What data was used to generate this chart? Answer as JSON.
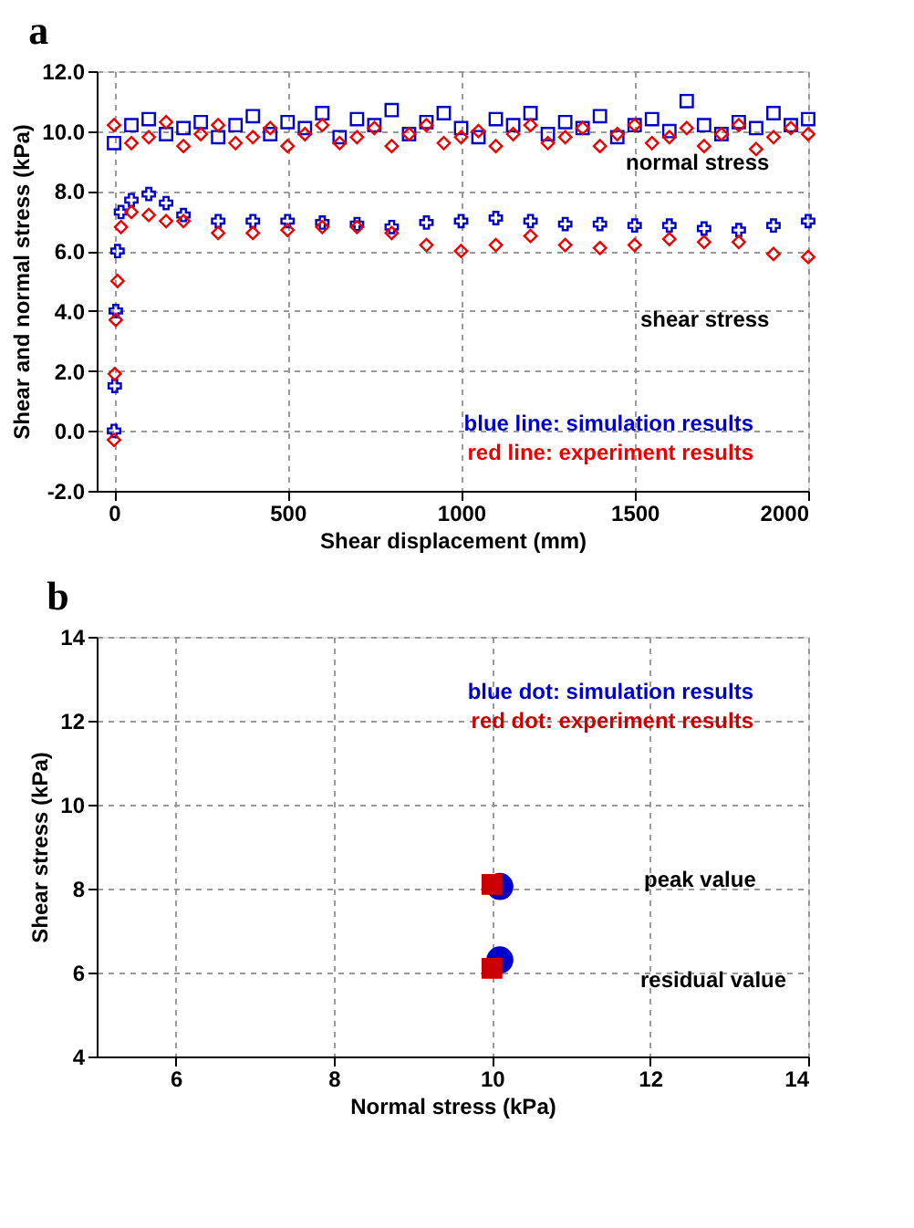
{
  "chart_data": [
    {
      "type": "scatter",
      "title": "a",
      "xlabel": "Shear displacement (mm)",
      "ylabel": "Shear and normal stress (kPa)",
      "xlim": [
        -50,
        2000
      ],
      "xticks": [
        0,
        500,
        {
          "value": 1000,
          "label": "1000"
        },
        {
          "value": 1500,
          "label": "1500"
        },
        {
          "value": 2000,
          "label": "2000"
        }
      ],
      "ylim": [
        -2,
        12
      ],
      "yticks": [
        {
          "value": -2,
          "label": "-2.0"
        },
        {
          "value": 0,
          "label": "0.0"
        },
        {
          "value": 2,
          "label": "2.0"
        },
        {
          "value": 4,
          "label": "4.0"
        },
        {
          "value": 6,
          "label": "6.0"
        },
        {
          "value": 8,
          "label": "8.0"
        },
        {
          "value": 10,
          "label": "10.0"
        },
        {
          "value": 12,
          "label": "12.0"
        }
      ],
      "grid": true,
      "series": [
        {
          "color": "#0000cc",
          "marker": "square",
          "x": [
            0,
            50,
            100,
            150,
            200,
            250,
            300,
            350,
            400,
            450,
            500,
            550,
            600,
            650,
            700,
            750,
            800,
            850,
            900,
            950,
            1000,
            1050,
            1100,
            1150,
            1200,
            1250,
            1300,
            1350,
            1400,
            1450,
            1500,
            1550,
            1600,
            1650,
            1700,
            1750,
            1800,
            1850,
            1900,
            1950,
            2000
          ],
          "values": [
            9.6,
            10.2,
            10.4,
            9.9,
            10.1,
            10.3,
            9.8,
            10.2,
            10.5,
            9.9,
            10.3,
            10.1,
            10.6,
            9.8,
            10.4,
            10.2,
            10.7,
            9.9,
            10.3,
            10.6,
            10.1,
            9.8,
            10.4,
            10.2,
            10.6,
            9.9,
            10.3,
            10.1,
            10.5,
            9.8,
            10.2,
            10.4,
            10.0,
            11.0,
            10.2,
            9.9,
            10.3,
            10.1,
            10.6,
            10.2,
            10.4
          ]
        },
        {
          "color": "#ee0000",
          "marker": "diamond",
          "x": [
            0,
            50,
            100,
            150,
            200,
            250,
            300,
            350,
            400,
            450,
            500,
            550,
            600,
            650,
            700,
            750,
            800,
            850,
            900,
            950,
            1000,
            1050,
            1100,
            1150,
            1200,
            1250,
            1300,
            1350,
            1400,
            1450,
            1500,
            1550,
            1600,
            1650,
            1700,
            1750,
            1800,
            1850,
            1900,
            1950,
            2000
          ],
          "values": [
            10.2,
            9.6,
            9.8,
            10.3,
            9.5,
            9.9,
            10.2,
            9.6,
            9.8,
            10.1,
            9.5,
            9.9,
            10.2,
            9.6,
            9.8,
            10.1,
            9.5,
            9.9,
            10.2,
            9.6,
            9.8,
            10.0,
            9.5,
            9.9,
            10.2,
            9.6,
            9.8,
            10.1,
            9.5,
            9.9,
            10.2,
            9.6,
            9.8,
            10.1,
            9.5,
            9.9,
            10.2,
            9.4,
            9.8,
            10.1,
            9.9
          ]
        },
        {
          "color": "#0000cc",
          "marker": "cross",
          "x": [
            0,
            2,
            5,
            10,
            20,
            50,
            100,
            150,
            200,
            300,
            400,
            500,
            600,
            700,
            800,
            900,
            1000,
            1100,
            1200,
            1300,
            1400,
            1500,
            1600,
            1700,
            1800,
            1900,
            2000
          ],
          "values": [
            0,
            1.5,
            4,
            6,
            7.3,
            7.7,
            7.9,
            7.6,
            7.2,
            7.0,
            7.0,
            7.0,
            6.95,
            6.9,
            6.8,
            6.95,
            7.0,
            7.1,
            7.0,
            6.9,
            6.9,
            6.85,
            6.85,
            6.75,
            6.7,
            6.85,
            7.0
          ]
        },
        {
          "color": "#ee0000",
          "marker": "diamond",
          "x": [
            0,
            2,
            5,
            10,
            20,
            50,
            100,
            150,
            200,
            300,
            400,
            500,
            600,
            700,
            800,
            900,
            1000,
            1100,
            1200,
            1300,
            1400,
            1500,
            1600,
            1700,
            1800,
            1900,
            2000
          ],
          "values": [
            -0.3,
            1.9,
            3.7,
            5,
            6.8,
            7.3,
            7.2,
            7.0,
            7.0,
            6.6,
            6.6,
            6.7,
            6.8,
            6.8,
            6.6,
            6.2,
            6.0,
            6.2,
            6.5,
            6.2,
            6.1,
            6.2,
            6.4,
            6.3,
            6.3,
            5.9,
            5.8
          ]
        }
      ],
      "annotations": [
        "blue line: simulation results",
        "red line: experiment results",
        "normal stress",
        "shear stress"
      ]
    },
    {
      "type": "scatter",
      "title": "b",
      "xlabel": "Normal stress (kPa)",
      "ylabel": "Shear stress (kPa)",
      "xlim": [
        5,
        14
      ],
      "xticks": [
        6,
        8,
        10,
        12,
        14
      ],
      "ylim": [
        4,
        14
      ],
      "yticks": [
        4,
        6,
        8,
        10,
        12,
        14
      ],
      "grid": true,
      "series": [
        {
          "color": "#0000cc",
          "marker": "circle",
          "x": [
            10.1,
            10.1
          ],
          "values": [
            8.05,
            6.3
          ]
        },
        {
          "color": "#cc0000",
          "marker": "square",
          "x": [
            10.0,
            10.0
          ],
          "values": [
            8.1,
            6.1
          ]
        }
      ],
      "annotations": [
        "blue dot: simulation results",
        "red dot: experiment results",
        "peak value",
        "residual value"
      ]
    }
  ]
}
